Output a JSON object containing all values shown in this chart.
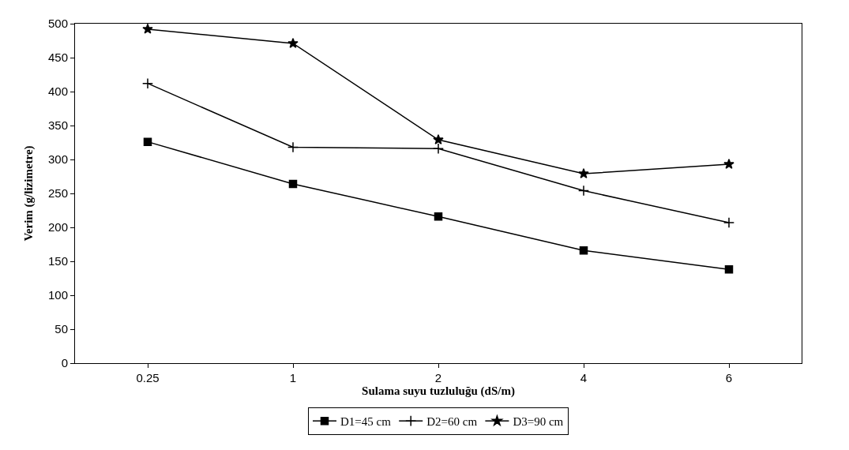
{
  "chart_data": {
    "type": "line",
    "xlabel": "Sulama suyu tuzluluğu (dS/m)",
    "ylabel": "Verim (g/lizimetre)",
    "categories": [
      "0.25",
      "1",
      "2",
      "4",
      "6"
    ],
    "ylim": [
      0,
      500
    ],
    "yticks": [
      0,
      50,
      100,
      150,
      200,
      250,
      300,
      350,
      400,
      450,
      500
    ],
    "grid": false,
    "legend": "bottom",
    "line_style": "solid",
    "series": [
      {
        "name": "D1=45 cm",
        "color": "#000000",
        "marker": "square",
        "values": [
          326,
          264,
          216,
          166,
          138
        ]
      },
      {
        "name": "D2=60 cm",
        "color": "#000000",
        "marker": "cross",
        "values": [
          412,
          318,
          316,
          254,
          207
        ]
      },
      {
        "name": "D3=90 cm",
        "color": "#000000",
        "marker": "star",
        "values": [
          492,
          471,
          329,
          279,
          293
        ]
      }
    ]
  }
}
